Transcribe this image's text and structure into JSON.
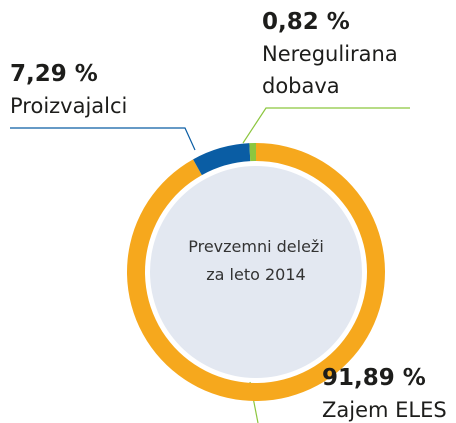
{
  "chart_data": {
    "type": "donut",
    "center_text": [
      "Prevzemni deleži",
      "za leto 2014"
    ],
    "categories": [
      "Zajem ELES",
      "Proizvajalci",
      "Neregulirana dobava"
    ],
    "values": [
      91.89,
      7.29,
      0.82
    ],
    "value_labels": [
      "91,89 %",
      "7,29 %",
      "0,82 %"
    ],
    "colors": [
      "#f6a81d",
      "#0a5da4",
      "#8cc63f"
    ]
  }
}
